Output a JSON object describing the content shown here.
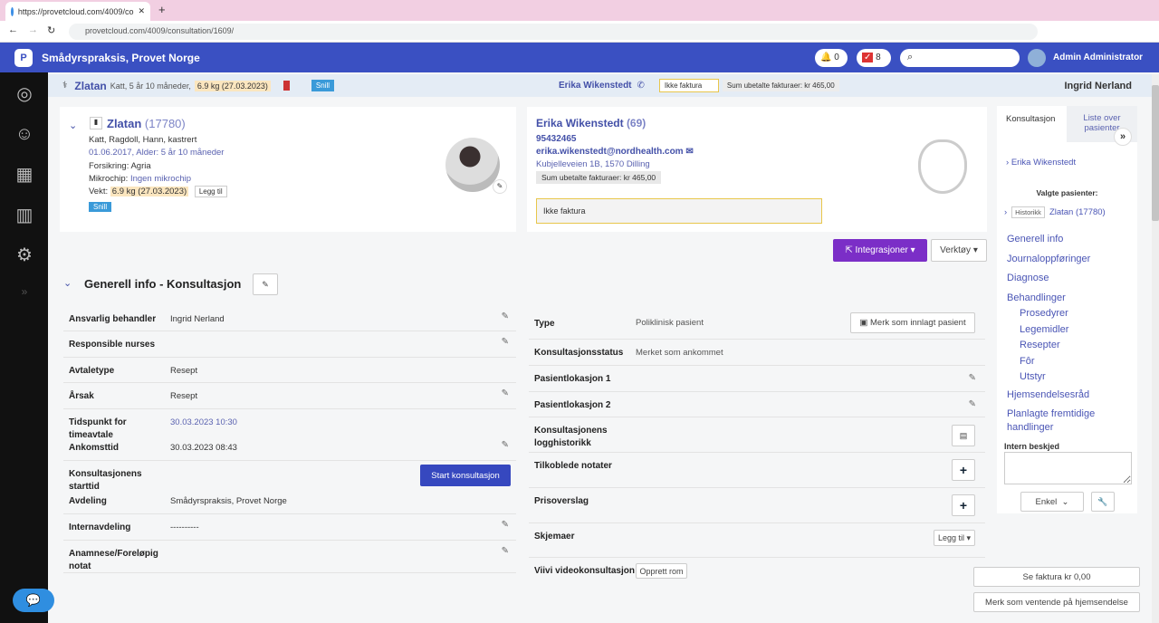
{
  "browser": {
    "tab_title": "https://provetcloud.com/4009/co",
    "url": "provetcloud.com/4009/consultation/1609/"
  },
  "topnav": {
    "clinic": "Smådyrspraksis, Provet Norge",
    "notifications": "0",
    "tasks": "8",
    "search_placeholder": "",
    "user": "Admin Administrator",
    "brand_color": "#3a50c2"
  },
  "subheader": {
    "patient": "Zlatan",
    "patient_info": "Katt, 5 år 10 måneder,",
    "weight": "6.9 kg (27.03.2023)",
    "tag": "Snill",
    "owner": "Erika Wikenstedt",
    "invoice_note": "Ikke faktura",
    "unpaid": "Sum ubetalte fakturaer: kr 465,00",
    "vet": "Ingrid Nerland"
  },
  "patient": {
    "name": "Zlatan",
    "id": "(17780)",
    "species": "Katt, Ragdoll, Hann, kastrert",
    "birth": "01.06.2017, Alder: 5 år 10 måneder",
    "insurance": "Forsikring: Agria",
    "chip_label": "Mikrochip:",
    "chip": "Ingen mikrochip",
    "weight_label": "Vekt:",
    "weight": "6.9 kg (27.03.2023)",
    "add": "Legg til",
    "tag": "Snill"
  },
  "owner": {
    "name": "Erika Wikenstedt",
    "id": "(69)",
    "phone": "95432465",
    "email": "erika.wikenstedt@nordhealth.com",
    "address": "Kubjelleveien 1B, 1570 Dilling",
    "unpaid": "Sum ubetalte fakturaer: kr 465,00",
    "note": "Ikke faktura"
  },
  "actions": {
    "integrations": "Integrasjoner",
    "tools": "Verktøy"
  },
  "section": {
    "title": "Generell info - Konsultasjon"
  },
  "left_fields": [
    {
      "label": "Ansvarlig behandler",
      "value": "Ingrid Nerland"
    },
    {
      "label": "Responsible nurses",
      "value": ""
    },
    {
      "label": "Avtaletype",
      "value": "Resept"
    },
    {
      "label": "Årsak",
      "value": "Resept"
    },
    {
      "label": "Tidspunkt for timeavtale",
      "value": "30.03.2023 10:30"
    },
    {
      "label": "Ankomsttid",
      "value": "30.03.2023 08:43"
    },
    {
      "label": "Konsultasjonens starttid",
      "value": ""
    },
    {
      "label": "Avdeling",
      "value": "Smådyrspraksis, Provet Norge"
    },
    {
      "label": "Internavdeling",
      "value": "----------"
    },
    {
      "label": "Anamnese/Foreløpig notat",
      "value": ""
    }
  ],
  "start_button": "Start konsultasjon",
  "right_fields": [
    {
      "label": "Type",
      "value": "Poliklinisk pasient"
    },
    {
      "label": "Konsultasjonsstatus",
      "value": "Merket som ankommet"
    },
    {
      "label": "Pasientlokasjon 1",
      "value": ""
    },
    {
      "label": "Pasientlokasjon 2",
      "value": ""
    },
    {
      "label": "Konsultasjonens logghistorikk",
      "value": ""
    },
    {
      "label": "Tilkoblede notater",
      "value": ""
    },
    {
      "label": "Prisoverslag",
      "value": ""
    },
    {
      "label": "Skjemaer",
      "value": ""
    },
    {
      "label": "Viivi videokonsultasjon",
      "value": ""
    }
  ],
  "mark_inpatient": "Merk som innlagt pasient",
  "add_form": "Legg til",
  "create_room": "Opprett rom",
  "rightpanel": {
    "tab1": "Konsultasjon",
    "tab2": "Liste over pasienter",
    "owner": "Erika Wikenstedt",
    "selected": "Valgte pasienter:",
    "history": "Historikk",
    "patient": "Zlatan (17780)",
    "nav": [
      "Generell info",
      "Journaloppføringer",
      "Diagnose",
      "Behandlinger"
    ],
    "subnav": [
      "Prosedyrer",
      "Legemidler",
      "Resepter",
      "Fôr",
      "Utstyr"
    ],
    "nav2": [
      "Hjemsendelsesråd",
      "Planlagte fremtidige handlinger"
    ],
    "note_label": "Intern beskjed",
    "mode": "Enkel",
    "invoice": "Se faktura kr 0,00",
    "waiting": "Merk som ventende på hjemsendelse"
  }
}
